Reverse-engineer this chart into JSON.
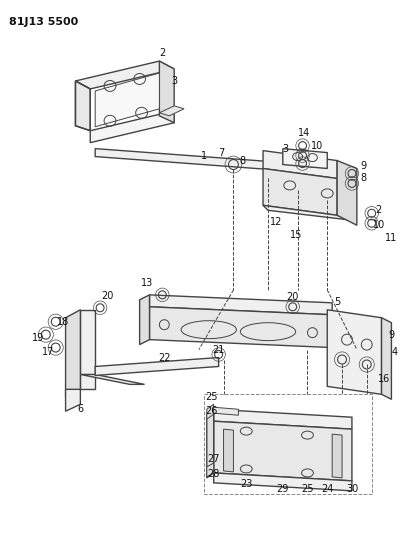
{
  "title": "81J13 5500",
  "background_color": "#ffffff",
  "line_color": "#444444",
  "figsize": [
    4.0,
    5.33
  ],
  "dpi": 100
}
